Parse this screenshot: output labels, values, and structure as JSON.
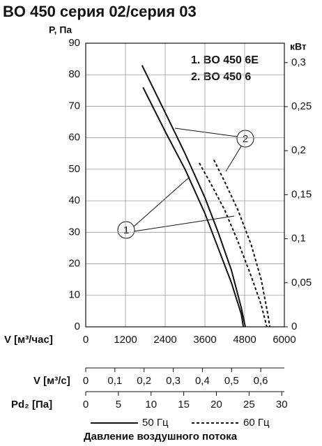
{
  "chart_data": {
    "type": "line",
    "title": "BO 450 серия 02/серия 03",
    "ylabel": "P, Па",
    "y2label": "кВт",
    "xlabel": "V [м³/час]",
    "xlim": [
      0,
      6000
    ],
    "xticks": [
      0,
      1200,
      2400,
      3600,
      4800,
      6000
    ],
    "ylim": [
      0,
      90
    ],
    "yticks": [
      0,
      10,
      20,
      30,
      40,
      50,
      60,
      70,
      80,
      90
    ],
    "y2lim": [
      0,
      0.322
    ],
    "y2ticks": [
      0,
      {
        "value": 0.05,
        "label": "0,05"
      },
      {
        "value": 0.1,
        "label": "0,1"
      },
      {
        "value": 0.15,
        "label": "0,15"
      },
      {
        "value": 0.2,
        "label": "0,2"
      },
      {
        "value": 0.25,
        "label": "0,25"
      },
      {
        "value": 0.3,
        "label": "0,3"
      }
    ],
    "grid": true,
    "models": [
      "1. BO 450 6E",
      "2. BO 450 6"
    ],
    "annotations": [
      "1",
      "2"
    ],
    "series": [
      {
        "color": "#111",
        "dash": false,
        "x": [
          1730,
          2400,
          3000,
          3600,
          4000,
          4400,
          4700,
          4760
        ],
        "values": [
          76,
          62,
          50,
          36,
          25,
          14,
          4,
          0
        ]
      },
      {
        "color": "#111",
        "dash": false,
        "x": [
          1700,
          2400,
          3000,
          3600,
          4000,
          4400,
          4700,
          4820
        ],
        "values": [
          83,
          68,
          55,
          41,
          30,
          18,
          6,
          0
        ]
      },
      {
        "color": "#111",
        "dash": true,
        "x": [
          3430,
          3800,
          4200,
          4600,
          5000,
          5300,
          5470
        ],
        "values": [
          52,
          45,
          37,
          27,
          16,
          7,
          0
        ]
      },
      {
        "color": "#111",
        "dash": true,
        "x": [
          3870,
          4200,
          4600,
          5000,
          5300,
          5500,
          5560
        ],
        "values": [
          53,
          46,
          37,
          26,
          15,
          4,
          0
        ]
      }
    ],
    "extra_axes": [
      {
        "label": "V [м³/с]",
        "xlim": [
          0,
          0.681
        ],
        "xticks": [
          0,
          {
            "value": 0.1,
            "label": "0,1"
          },
          {
            "value": 0.2,
            "label": "0,2"
          },
          {
            "value": 0.3,
            "label": "0,3"
          },
          {
            "value": 0.4,
            "label": "0,4"
          },
          {
            "value": 0.5,
            "label": "0,5"
          },
          {
            "value": 0.6,
            "label": "0,6"
          }
        ]
      },
      {
        "label": "Pd₂ [Па]",
        "xlim": [
          0,
          30.4
        ],
        "xticks": [
          0,
          5,
          10,
          15,
          20,
          25,
          30
        ]
      }
    ],
    "legend": [
      {
        "name": "50 Гц",
        "dash": false
      },
      {
        "name": "60 Гц",
        "dash": true
      }
    ],
    "caption": "Давление воздушного потока"
  }
}
